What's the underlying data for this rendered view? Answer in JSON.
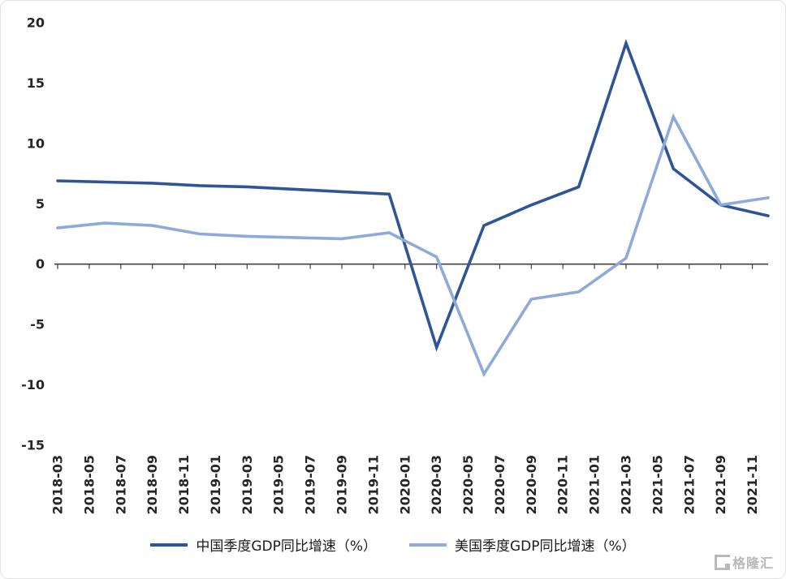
{
  "chart_data": {
    "type": "line",
    "title": "",
    "xlabel": "",
    "ylabel": "",
    "grid": false,
    "legend_position": "bottom",
    "ylim": [
      -15,
      20
    ],
    "y_ticks": [
      20,
      15,
      10,
      5,
      0,
      -5,
      -10,
      -15
    ],
    "x_unit": "months since 2018-03",
    "x_range": [
      0,
      45
    ],
    "x_tick_labels": [
      "2018-03",
      "2018-05",
      "2018-07",
      "2018-09",
      "2018-11",
      "2019-01",
      "2019-03",
      "2019-05",
      "2019-07",
      "2019-09",
      "2019-11",
      "2020-01",
      "2020-03",
      "2020-05",
      "2020-07",
      "2020-09",
      "2020-11",
      "2021-01",
      "2021-03",
      "2021-05",
      "2021-07",
      "2021-09",
      "2021-11"
    ],
    "series": [
      {
        "name": "中国季度GDP同比增速（%）",
        "color": "#2F5597",
        "points": [
          {
            "x": 0,
            "y": 6.9
          },
          {
            "x": 3,
            "y": 6.8
          },
          {
            "x": 6,
            "y": 6.7
          },
          {
            "x": 9,
            "y": 6.5
          },
          {
            "x": 12,
            "y": 6.4
          },
          {
            "x": 15,
            "y": 6.2
          },
          {
            "x": 18,
            "y": 6.0
          },
          {
            "x": 21,
            "y": 5.8
          },
          {
            "x": 24,
            "y": -6.9
          },
          {
            "x": 27,
            "y": 3.2
          },
          {
            "x": 30,
            "y": 4.9
          },
          {
            "x": 33,
            "y": 6.4
          },
          {
            "x": 36,
            "y": 18.3
          },
          {
            "x": 39,
            "y": 7.9
          },
          {
            "x": 42,
            "y": 4.9
          },
          {
            "x": 45,
            "y": 4.0
          }
        ]
      },
      {
        "name": "美国季度GDP同比增速（%）",
        "color": "#8EAADB",
        "points": [
          {
            "x": 0,
            "y": 3.0
          },
          {
            "x": 3,
            "y": 3.4
          },
          {
            "x": 6,
            "y": 3.2
          },
          {
            "x": 9,
            "y": 2.5
          },
          {
            "x": 12,
            "y": 2.3
          },
          {
            "x": 15,
            "y": 2.2
          },
          {
            "x": 18,
            "y": 2.1
          },
          {
            "x": 21,
            "y": 2.6
          },
          {
            "x": 24,
            "y": 0.6
          },
          {
            "x": 27,
            "y": -9.1
          },
          {
            "x": 30,
            "y": -2.9
          },
          {
            "x": 33,
            "y": -2.3
          },
          {
            "x": 36,
            "y": 0.5
          },
          {
            "x": 39,
            "y": 12.2
          },
          {
            "x": 42,
            "y": 4.9
          },
          {
            "x": 45,
            "y": 5.5
          }
        ]
      }
    ]
  },
  "colors": {
    "axis": "#404040",
    "tick_label": "#262626",
    "watermark": "#b9b9b9"
  },
  "watermark": {
    "text": "格隆汇"
  }
}
